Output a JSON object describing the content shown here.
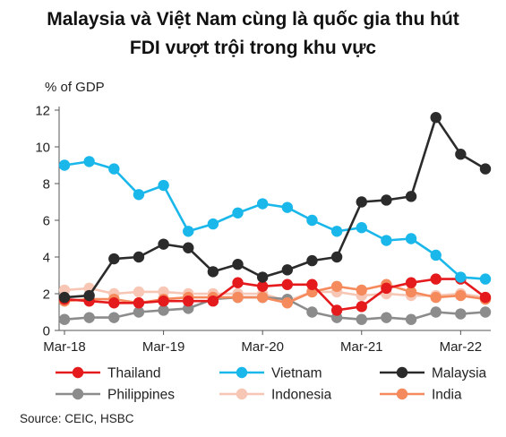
{
  "title_lines": [
    "Malaysia và Việt Nam cùng là quốc gia thu hút",
    "FDI vượt trội trong khu vực"
  ],
  "source": "Source: CEIC, HSBC",
  "chart_data": {
    "type": "line",
    "ylabel": "% of GDP",
    "ylim": [
      0,
      12
    ],
    "yticks": [
      0,
      2,
      4,
      6,
      8,
      10,
      12
    ],
    "x": [
      "Mar-18",
      "Jun-18",
      "Sep-18",
      "Dec-18",
      "Mar-19",
      "Jun-19",
      "Sep-19",
      "Dec-19",
      "Mar-20",
      "Jun-20",
      "Sep-20",
      "Dec-20",
      "Mar-21",
      "Jun-21",
      "Sep-21",
      "Dec-21",
      "Mar-22",
      "Jun-22"
    ],
    "xtick_labels": [
      "Mar-18",
      "Mar-19",
      "Mar-20",
      "Mar-21",
      "Mar-22"
    ],
    "xtick_indices": [
      0,
      4,
      8,
      12,
      16
    ],
    "legend_placement": "bottom",
    "series": [
      {
        "name": "Thailand",
        "color": "#e41a1c",
        "values": [
          1.7,
          1.6,
          1.5,
          1.5,
          1.6,
          1.6,
          1.6,
          2.6,
          2.4,
          2.5,
          2.5,
          1.1,
          1.3,
          2.3,
          2.6,
          2.8,
          2.8,
          1.8
        ]
      },
      {
        "name": "Vietnam",
        "color": "#1ab7ea",
        "values": [
          9.0,
          9.2,
          8.8,
          7.4,
          7.9,
          5.4,
          5.8,
          6.4,
          6.9,
          6.7,
          6.0,
          5.4,
          5.6,
          4.9,
          5.0,
          4.1,
          2.9,
          2.8
        ]
      },
      {
        "name": "Malaysia",
        "color": "#2b2b2b",
        "values": [
          1.8,
          1.9,
          3.9,
          4.0,
          4.7,
          4.5,
          3.2,
          3.6,
          2.9,
          3.3,
          3.8,
          4.0,
          7.0,
          7.1,
          7.3,
          11.6,
          9.6,
          8.8
        ]
      },
      {
        "name": "Philippines",
        "color": "#8c8c8c",
        "values": [
          0.6,
          0.7,
          0.7,
          1.0,
          1.1,
          1.2,
          1.7,
          1.8,
          1.8,
          1.7,
          1.0,
          0.7,
          0.6,
          0.7,
          0.6,
          1.0,
          0.9,
          1.0
        ]
      },
      {
        "name": "Indonesia",
        "color": "#f7c6b4",
        "values": [
          2.2,
          2.3,
          2.0,
          2.1,
          2.1,
          2.0,
          2.0,
          2.0,
          2.0,
          1.6,
          2.1,
          2.1,
          1.9,
          2.0,
          1.9,
          1.9,
          2.0,
          1.8
        ]
      },
      {
        "name": "India",
        "color": "#f58a5c",
        "values": [
          1.6,
          1.7,
          1.7,
          1.5,
          1.7,
          1.8,
          1.8,
          1.8,
          1.8,
          1.5,
          2.1,
          2.4,
          2.2,
          2.5,
          2.1,
          1.8,
          1.9,
          1.7
        ]
      }
    ]
  }
}
